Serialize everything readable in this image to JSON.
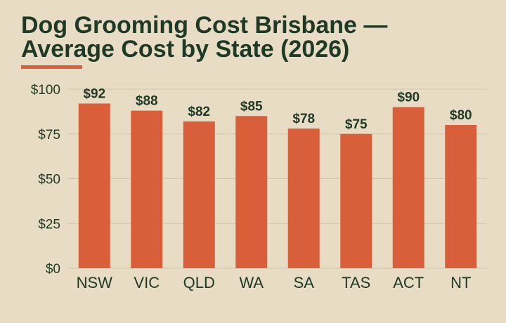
{
  "chart_data": {
    "type": "bar",
    "title": "Dog Grooming Cost Brisbane — Average Cost by State (2026)",
    "xlabel": "",
    "ylabel": "",
    "categories": [
      "NSW",
      "VIC",
      "QLD",
      "WA",
      "SA",
      "TAS",
      "ACT",
      "NT"
    ],
    "values": [
      92,
      88,
      82,
      85,
      78,
      75,
      90,
      80
    ],
    "data_labels": [
      "$92",
      "$88",
      "$82",
      "$85",
      "$78",
      "$75",
      "$90",
      "$80"
    ],
    "ylim": [
      0,
      100
    ],
    "yticks": [
      0,
      25,
      50,
      75,
      100
    ],
    "ytick_labels": [
      "$0",
      "$25",
      "$50",
      "$75",
      "$100"
    ],
    "grid": true,
    "legend": "none",
    "colors": {
      "bar": "#d95f3b",
      "text": "#1e3a26",
      "grid": "#cfc4ab",
      "background": "#e8dcc4",
      "accent": "#d95f3b"
    }
  }
}
